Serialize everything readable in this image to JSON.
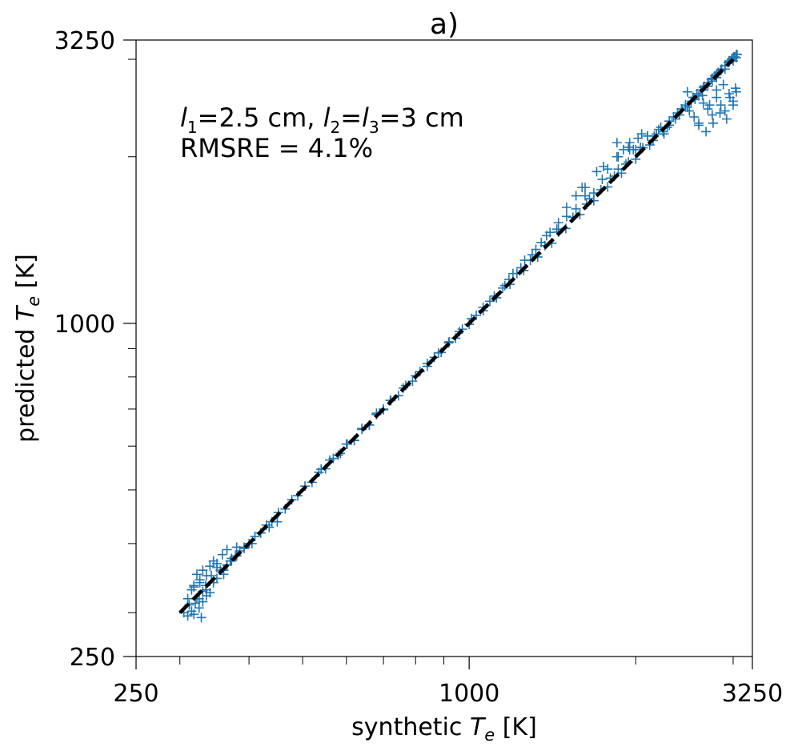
{
  "chart_data": {
    "type": "scatter",
    "title": "a)",
    "xlabel": "synthetic $T_e$ [K]",
    "ylabel": "predicted $T_e$ [K]",
    "xlabel_parts": [
      "synthetic ",
      "T",
      "e",
      " [K]"
    ],
    "ylabel_parts": [
      "predicted ",
      "T",
      "e",
      " [K]"
    ],
    "xscale": "log",
    "yscale": "log",
    "xlim": [
      250,
      3250
    ],
    "ylim": [
      250,
      3250
    ],
    "xticks": [
      250,
      1000,
      3250
    ],
    "yticks": [
      250,
      1000,
      3250
    ],
    "xtick_labels": [
      "250",
      "1000",
      "3250"
    ],
    "ytick_labels": [
      "250",
      "1000",
      "3250"
    ],
    "minor_ticks": [
      300,
      400,
      500,
      600,
      700,
      800,
      900,
      2000,
      3000
    ],
    "grid": false,
    "marker": "+",
    "marker_color": "#1f77b4",
    "annotations": [
      "l1=2.5 cm, l2=l3=3 cm",
      "RMSRE = 4.1%"
    ],
    "reference_line": {
      "style": "dashed",
      "color": "#000000",
      "x": [
        300,
        3000
      ],
      "y": [
        300,
        3000
      ]
    },
    "series": [
      {
        "marker": "+",
        "x": [
          305,
          310,
          312,
          315,
          318,
          322,
          325,
          328,
          330,
          335,
          340,
          345,
          350,
          355,
          360,
          365,
          372,
          378,
          385,
          392,
          400,
          410,
          420,
          430,
          440,
          452,
          465,
          478,
          490,
          505,
          520,
          535,
          550,
          568,
          585,
          602,
          620,
          640,
          660,
          680,
          700,
          722,
          745,
          768,
          790,
          815,
          840,
          865,
          890,
          918,
          945,
          972,
          1000,
          1030,
          1060,
          1090,
          1120,
          1150,
          1185,
          1220,
          1255,
          1290,
          1330,
          1370,
          1410,
          1450,
          1495,
          1540,
          1585,
          1630,
          1680,
          1730,
          1780,
          1830,
          1885,
          1940,
          2000,
          2060,
          2120,
          2180,
          2240,
          2300,
          2360,
          2420,
          2480,
          2540,
          2600,
          2650,
          2700,
          2750,
          2800,
          2850,
          2900,
          2950,
          3000,
          3020,
          3040,
          3050,
          315,
          318,
          322,
          326,
          330,
          335,
          340,
          345,
          350,
          358,
          365,
          372,
          380,
          320,
          325,
          330,
          335,
          310,
          318,
          326,
          334,
          342,
          350,
          360,
          370,
          380,
          392,
          405,
          420,
          435,
          450,
          1200,
          1260,
          1320,
          1380,
          1440,
          1500,
          1560,
          1620,
          1680,
          1740,
          1800,
          1860,
          1920,
          1980,
          2040,
          2100,
          2160,
          2220,
          2280,
          2340,
          2400,
          2460,
          2520,
          2580,
          2640,
          2700,
          2750,
          2800,
          2850,
          2900,
          2950,
          3000,
          2500,
          2550,
          2600,
          2650,
          2700,
          2750,
          2800,
          2850,
          2900,
          2950,
          3000,
          3030,
          2600,
          2680,
          2760,
          2840,
          2920,
          3000,
          2480,
          2560,
          2640,
          2720,
          2800,
          2880,
          2960,
          3040,
          1850,
          1900,
          1950,
          2000,
          2050,
          2100,
          2150,
          2200,
          2250,
          2300,
          1500,
          1560,
          1620,
          1700,
          1780,
          1860,
          1940,
          2020,
          1600,
          1650,
          1750,
          1850,
          1950,
          540,
          560,
          580,
          600,
          620,
          640,
          660,
          680,
          700,
          720,
          760,
          800,
          840,
          880,
          920,
          960,
          1010,
          1060,
          1110,
          1160,
          2300,
          2380,
          2460,
          2540,
          2620,
          2700,
          2780,
          2860,
          2940,
          3010,
          2580,
          2660,
          2740,
          2820,
          2900,
          2980,
          3040,
          1300,
          1350,
          1400,
          1450,
          1180,
          1240
        ],
        "y": [
          300,
          296,
          310,
          302,
          298,
          318,
          306,
          294,
          314,
          330,
          326,
          340,
          346,
          358,
          352,
          366,
          372,
          380,
          388,
          394,
          400,
          412,
          418,
          432,
          438,
          455,
          462,
          480,
          488,
          508,
          516,
          538,
          546,
          570,
          582,
          605,
          615,
          643,
          655,
          684,
          698,
          725,
          740,
          772,
          786,
          818,
          836,
          868,
          886,
          922,
          940,
          976,
          996,
          1034,
          1054,
          1096,
          1112,
          1158,
          1176,
          1230,
          1246,
          1300,
          1318,
          1382,
          1396,
          1462,
          1484,
          1554,
          1572,
          1642,
          1666,
          1744,
          1764,
          1845,
          1868,
          1956,
          1980,
          2076,
          2100,
          2198,
          2220,
          2318,
          2340,
          2440,
          2458,
          2560,
          2576,
          2670,
          2682,
          2772,
          2780,
          2872,
          2880,
          2972,
          2980,
          3030,
          3020,
          3060,
          330,
          336,
          352,
          344,
          358,
          350,
          364,
          372,
          368,
          382,
          390,
          376,
          394,
          312,
          318,
          328,
          322,
          318,
          334,
          340,
          336,
          350,
          362,
          358,
          372,
          380,
          392,
          400,
          418,
          428,
          438,
          1230,
          1300,
          1360,
          1440,
          1480,
          1560,
          1610,
          1700,
          1720,
          1820,
          1830,
          1900,
          1940,
          2060,
          2080,
          2180,
          2180,
          2260,
          2260,
          2360,
          2380,
          2460,
          2520,
          2580,
          2640,
          2720,
          2740,
          2820,
          2860,
          2920,
          2980,
          3020,
          2420,
          2360,
          2300,
          2500,
          2440,
          2380,
          2560,
          2480,
          2420,
          2600,
          2520,
          2660,
          2280,
          2220,
          2300,
          2400,
          2340,
          2480,
          2620,
          2540,
          2580,
          2480,
          2640,
          2700,
          2560,
          2620,
          2120,
          2060,
          2120,
          2060,
          2200,
          2180,
          2140,
          2240,
          2200,
          2280,
          1620,
          1700,
          1760,
          1880,
          1900,
          2000,
          2080,
          2160,
          1760,
          1680,
          1920,
          2000,
          2060,
          545,
          566,
          578,
          605,
          614,
          646,
          655,
          688,
          700,
          726,
          764,
          804,
          846,
          884,
          926,
          966,
          1020,
          1068,
          1120,
          1170,
          2320,
          2400,
          2480,
          2560,
          2640,
          2720,
          2800,
          2880,
          2960,
          3030,
          2600,
          2680,
          2760,
          2840,
          2920,
          3000,
          3060,
          1330,
          1400,
          1460,
          1520,
          1200,
          1260
        ]
      }
    ]
  }
}
